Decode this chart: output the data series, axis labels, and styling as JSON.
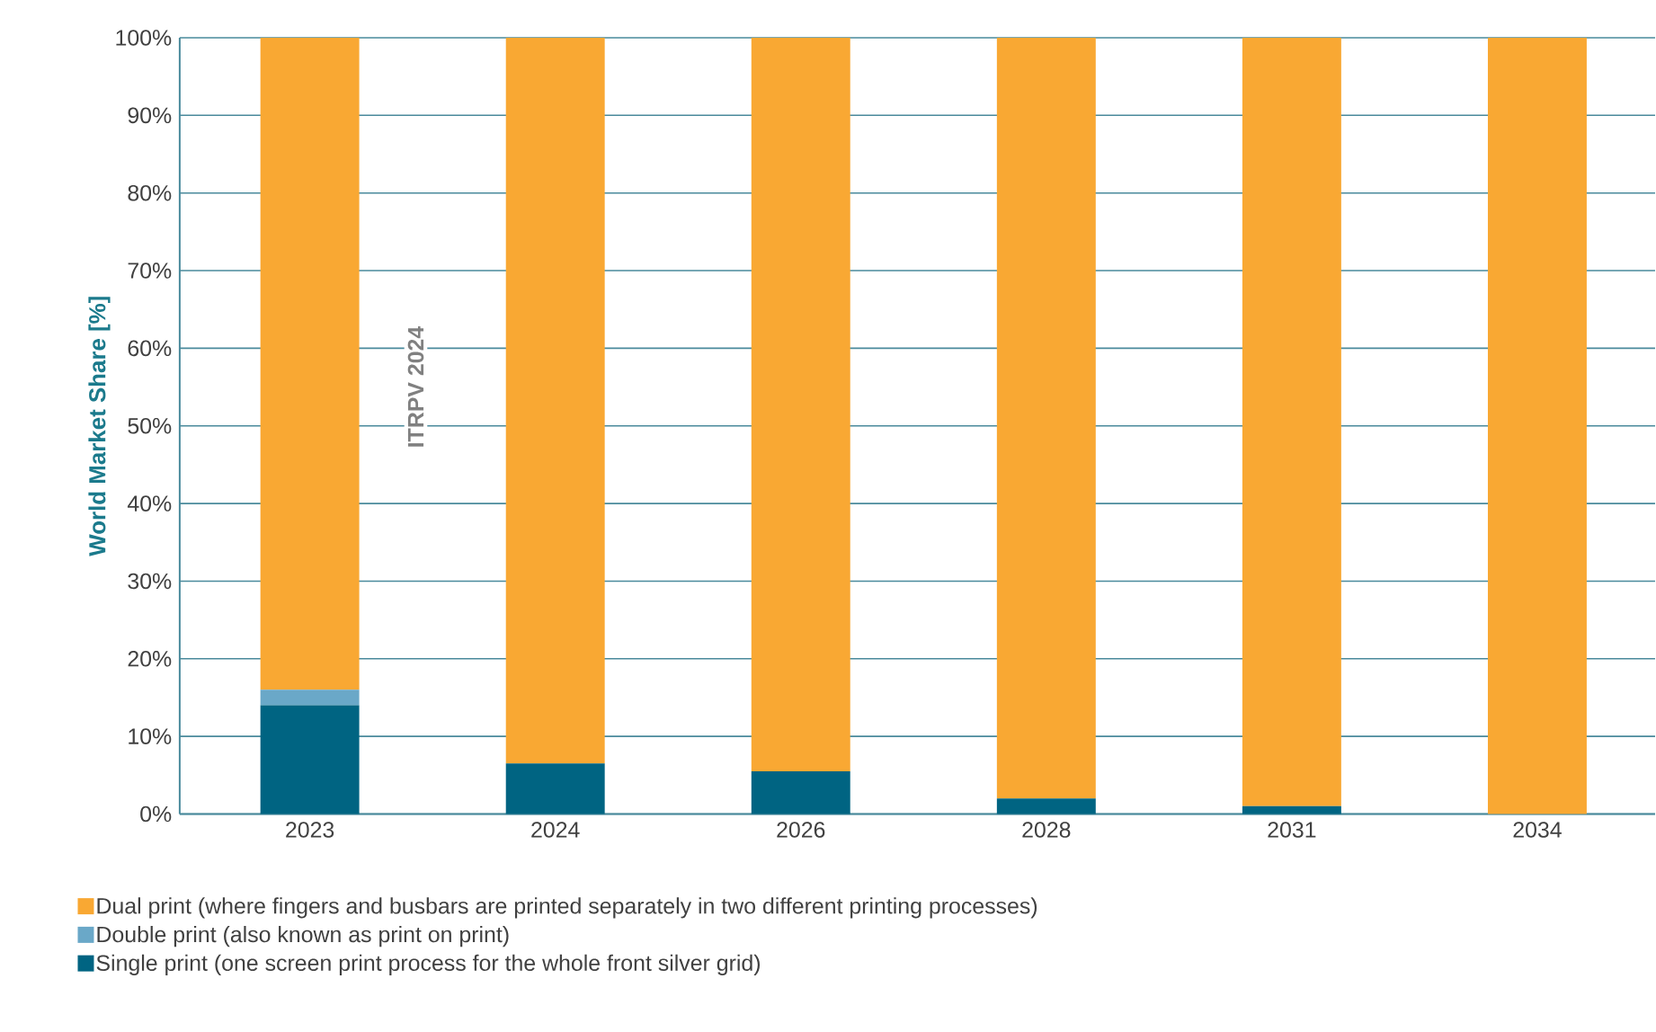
{
  "chart_data": {
    "type": "bar",
    "stacked": true,
    "ylabel": "World Market Share [%]",
    "categories": [
      "2023",
      "2024",
      "2026",
      "2028",
      "2031",
      "2034"
    ],
    "series": [
      {
        "name": "Single print (one screen print process for the whole front silver grid)",
        "color": "#006482",
        "values": [
          14,
          6.5,
          5.5,
          2,
          1,
          0
        ]
      },
      {
        "name": "Double print (also known as print on print)",
        "color": "#6aa8c8",
        "values": [
          2,
          0,
          0,
          0,
          0,
          0
        ]
      },
      {
        "name": "Dual print (where fingers and busbars are printed separately in two different printing processes)",
        "color": "#f9a833",
        "values": [
          84,
          93.5,
          94.5,
          98,
          99,
          100
        ]
      }
    ],
    "ylim": [
      0,
      100
    ],
    "yticks": [
      {
        "value": 0,
        "label": "0%"
      },
      {
        "value": 10,
        "label": "10%"
      },
      {
        "value": 20,
        "label": "20%"
      },
      {
        "value": 30,
        "label": "30%"
      },
      {
        "value": 40,
        "label": "40%"
      },
      {
        "value": 50,
        "label": "50%"
      },
      {
        "value": 60,
        "label": "60%"
      },
      {
        "value": 70,
        "label": "70%"
      },
      {
        "value": 80,
        "label": "80%"
      },
      {
        "value": 90,
        "label": "90%"
      },
      {
        "value": 100,
        "label": "100%"
      }
    ],
    "grid": "y",
    "legend": "bottom",
    "annotations": [
      "ITRPV 2024"
    ]
  }
}
